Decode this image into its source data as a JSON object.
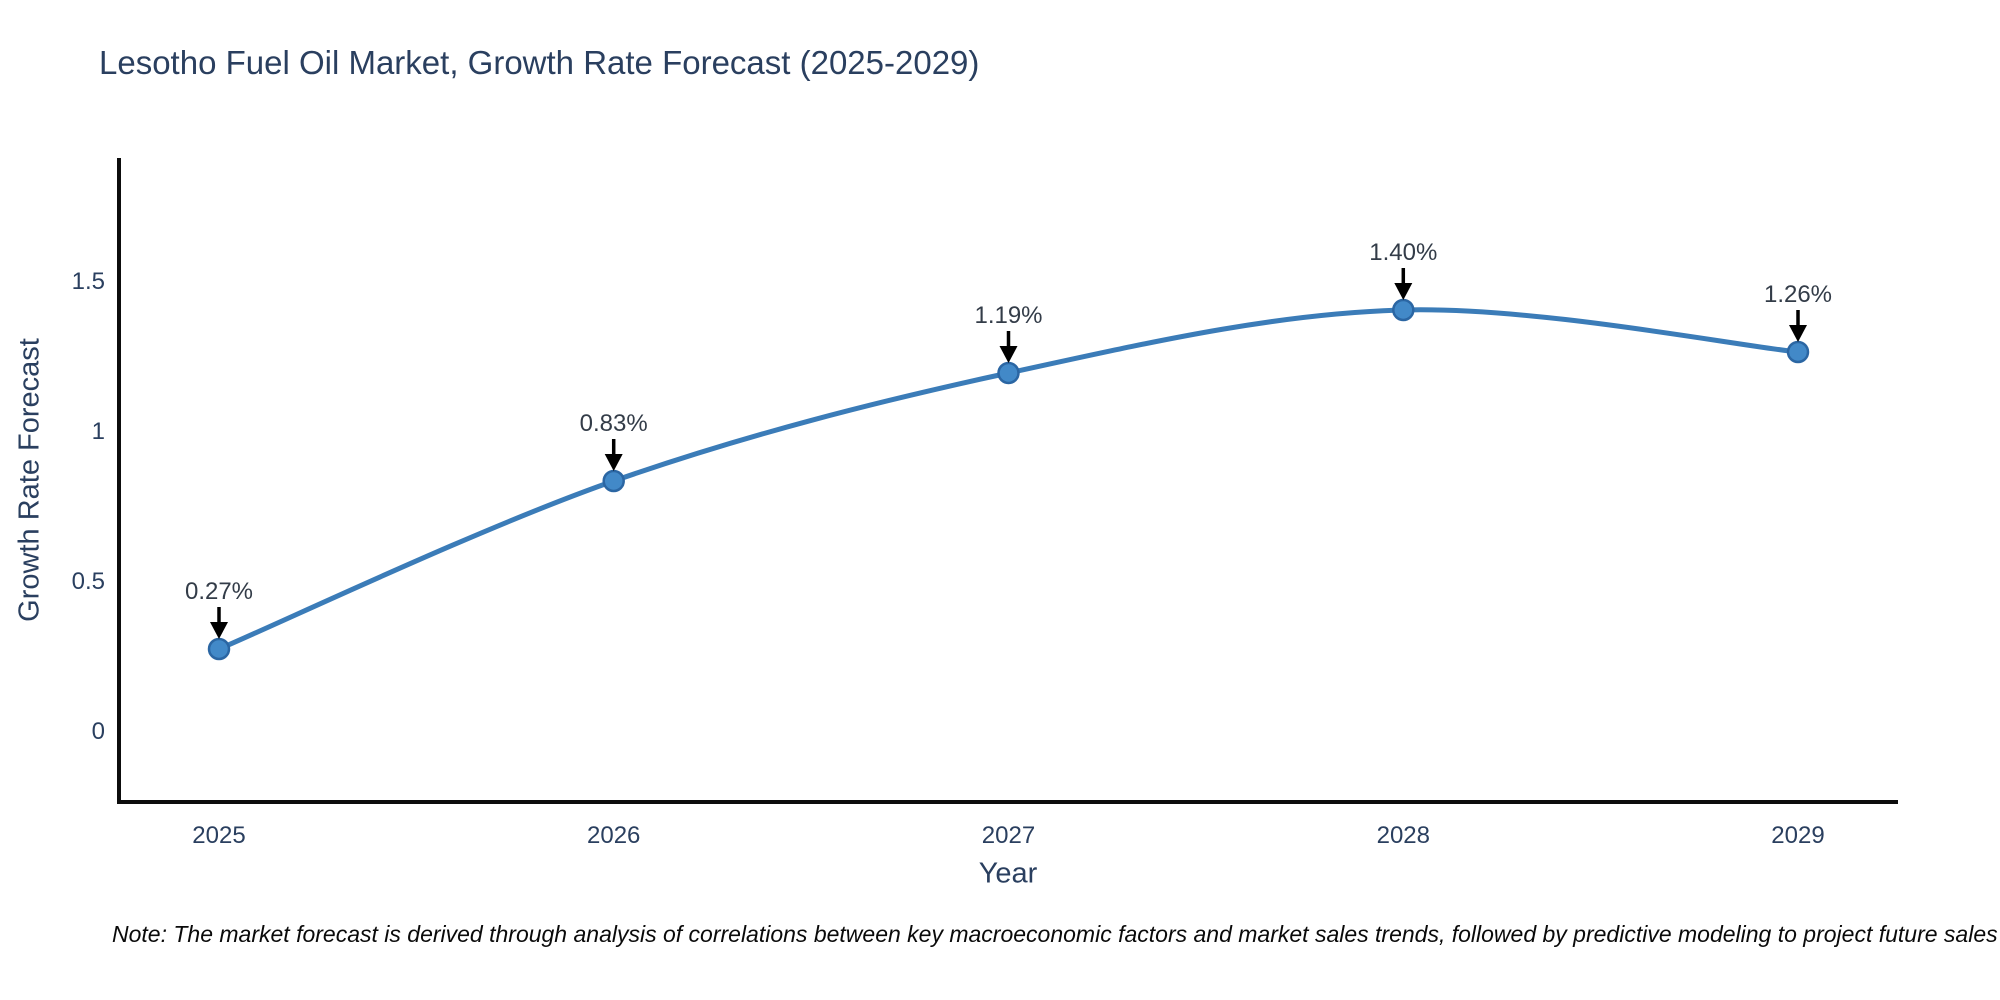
{
  "chart": {
    "title": "Lesotho Fuel Oil Market, Growth Rate Forecast (2025-2029)",
    "xlabel": "Year",
    "ylabel": "Growth Rate Forecast"
  },
  "note": "Note: The market forecast is derived through analysis of correlations between key macroeconomic factors and market sales trends, followed by predictive modeling to project future sales",
  "chart_data": {
    "type": "line",
    "title": "Lesotho Fuel Oil Market, Growth Rate Forecast (2025-2029)",
    "xlabel": "Year",
    "ylabel": "Growth Rate Forecast",
    "x": [
      2025,
      2026,
      2027,
      2028,
      2029
    ],
    "values": [
      0.27,
      0.83,
      1.19,
      1.4,
      1.26
    ],
    "point_labels": [
      "0.27%",
      "0.83%",
      "1.19%",
      "1.40%",
      "1.26%"
    ],
    "xticks": [
      "2025",
      "2026",
      "2027",
      "2028",
      "2029"
    ],
    "yticks": [
      0,
      0.5,
      1,
      1.5
    ],
    "ytick_labels": [
      "0",
      "0.5",
      "1",
      "1.5"
    ],
    "xlim": [
      2024.7467,
      2029.2533
    ],
    "ylim": [
      -0.24,
      1.9067
    ],
    "grid": false,
    "legend": "none",
    "line_shape": "spline",
    "colors": {
      "line": "#3b7cb8",
      "marker_fill": "#4289c8",
      "marker_edge": "#2b66a3",
      "axis": "#0d0d0d",
      "annotation": "#000000",
      "title_text": "#2a3f5f",
      "tick_text": "#2a3f5f"
    }
  }
}
